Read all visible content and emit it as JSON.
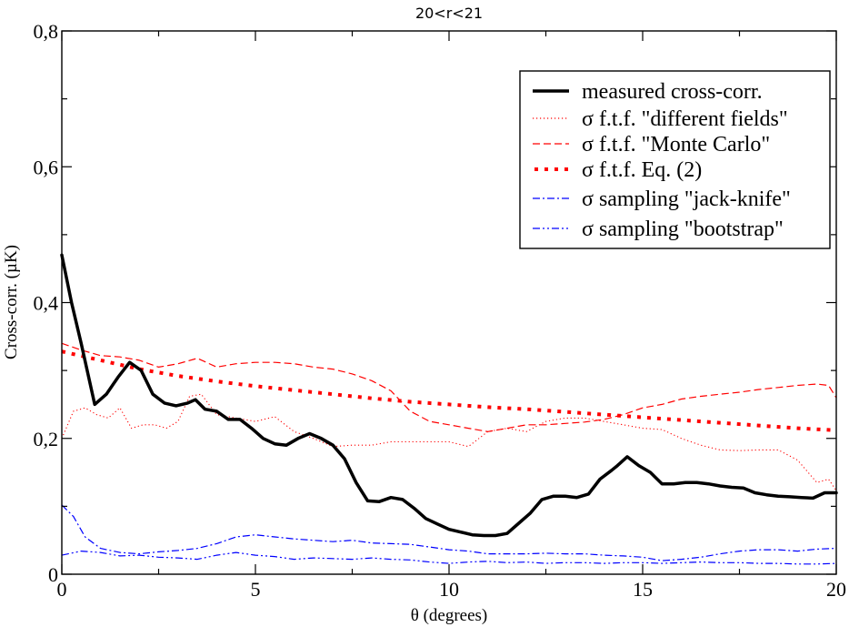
{
  "chart_data": {
    "type": "line",
    "title": "20<r<21",
    "xlabel": "θ (degrees)",
    "ylabel": "Cross-corr. (µK)",
    "xlim": [
      0,
      20
    ],
    "ylim": [
      0,
      0.8
    ],
    "xticks": [
      0,
      5,
      10,
      15,
      20
    ],
    "xtick_labels": [
      "0",
      "5",
      "10",
      "15",
      "20"
    ],
    "yticks": [
      0,
      0.2,
      0.4,
      0.6,
      0.8
    ],
    "ytick_labels": [
      "0",
      "0,2",
      "0,4",
      "0,6",
      "0,8"
    ],
    "grid": false,
    "legend_position": "top-right",
    "series": [
      {
        "name": "measured cross-corr.",
        "color": "#000000",
        "style": "solid-thick",
        "x": [
          0,
          0.25,
          0.5,
          0.85,
          1.15,
          1.45,
          1.75,
          2.05,
          2.35,
          2.65,
          2.95,
          3.25,
          3.45,
          3.7,
          4.0,
          4.3,
          4.6,
          4.9,
          5.2,
          5.5,
          5.8,
          6.1,
          6.4,
          6.7,
          7.0,
          7.3,
          7.6,
          7.9,
          8.2,
          8.5,
          8.8,
          9.1,
          9.4,
          9.7,
          10.0,
          10.3,
          10.6,
          10.9,
          11.2,
          11.5,
          11.8,
          12.1,
          12.4,
          12.7,
          13.0,
          13.3,
          13.6,
          13.9,
          14.2,
          14.35,
          14.6,
          14.9,
          15.2,
          15.5,
          15.8,
          16.1,
          16.4,
          16.7,
          17.0,
          17.3,
          17.6,
          17.9,
          18.2,
          18.5,
          18.8,
          19.1,
          19.4,
          19.7,
          20.0
        ],
        "values": [
          0.47,
          0.4,
          0.34,
          0.25,
          0.265,
          0.29,
          0.312,
          0.3,
          0.265,
          0.252,
          0.248,
          0.252,
          0.257,
          0.243,
          0.24,
          0.228,
          0.228,
          0.215,
          0.2,
          0.192,
          0.19,
          0.2,
          0.207,
          0.2,
          0.19,
          0.17,
          0.135,
          0.108,
          0.107,
          0.113,
          0.11,
          0.097,
          0.082,
          0.074,
          0.066,
          0.062,
          0.058,
          0.057,
          0.057,
          0.06,
          0.075,
          0.09,
          0.11,
          0.115,
          0.115,
          0.113,
          0.118,
          0.14,
          0.153,
          0.16,
          0.173,
          0.16,
          0.15,
          0.133,
          0.133,
          0.135,
          0.135,
          0.133,
          0.13,
          0.128,
          0.127,
          0.12,
          0.117,
          0.115,
          0.114,
          0.113,
          0.112,
          0.12,
          0.12
        ]
      },
      {
        "name": "σ f.t.f. \"different fields\"",
        "color": "#ff0000",
        "style": "dotted",
        "x": [
          0,
          0.3,
          0.6,
          0.9,
          1.2,
          1.5,
          1.8,
          2.1,
          2.4,
          2.7,
          3.0,
          3.3,
          3.6,
          4.0,
          4.5,
          5.0,
          5.5,
          6.0,
          6.5,
          7.0,
          7.5,
          8.0,
          8.5,
          9.0,
          9.5,
          10.0,
          10.5,
          11.0,
          11.5,
          12.0,
          12.5,
          13.0,
          13.5,
          14.0,
          14.5,
          15.0,
          15.5,
          16.0,
          16.5,
          17.0,
          17.5,
          18.0,
          18.5,
          19.0,
          19.5,
          19.8,
          20.0
        ],
        "values": [
          0.2,
          0.24,
          0.245,
          0.235,
          0.23,
          0.245,
          0.215,
          0.22,
          0.22,
          0.215,
          0.225,
          0.262,
          0.265,
          0.235,
          0.23,
          0.225,
          0.232,
          0.21,
          0.2,
          0.188,
          0.19,
          0.19,
          0.195,
          0.195,
          0.195,
          0.195,
          0.188,
          0.21,
          0.215,
          0.21,
          0.225,
          0.23,
          0.23,
          0.225,
          0.22,
          0.215,
          0.213,
          0.2,
          0.19,
          0.183,
          0.182,
          0.183,
          0.183,
          0.168,
          0.135,
          0.14,
          0.123
        ]
      },
      {
        "name": "σ f.t.f. \"Monte Carlo\"",
        "color": "#ff0000",
        "style": "dashed",
        "x": [
          0,
          0.5,
          1.0,
          1.5,
          2.0,
          2.5,
          3.0,
          3.5,
          4.0,
          4.5,
          5.0,
          5.5,
          6.0,
          6.5,
          7.0,
          7.5,
          8.0,
          8.5,
          9.0,
          9.5,
          10.0,
          10.5,
          11.0,
          11.5,
          12.0,
          12.5,
          13.0,
          13.5,
          14.0,
          14.5,
          15.0,
          15.5,
          16.0,
          16.5,
          17.0,
          17.5,
          18.0,
          18.5,
          19.0,
          19.5,
          19.8,
          20.0
        ],
        "values": [
          0.34,
          0.33,
          0.322,
          0.32,
          0.315,
          0.305,
          0.31,
          0.318,
          0.305,
          0.31,
          0.312,
          0.312,
          0.31,
          0.305,
          0.302,
          0.295,
          0.285,
          0.27,
          0.24,
          0.225,
          0.22,
          0.215,
          0.21,
          0.215,
          0.22,
          0.22,
          0.222,
          0.224,
          0.228,
          0.235,
          0.245,
          0.25,
          0.258,
          0.262,
          0.265,
          0.268,
          0.272,
          0.275,
          0.278,
          0.28,
          0.278,
          0.26
        ]
      },
      {
        "name": "σ f.t.f. Eq. (2)",
        "color": "#ff0000",
        "style": "square-dots",
        "x": [
          0,
          1,
          2,
          3,
          4,
          5,
          6,
          7,
          8,
          9,
          10,
          11,
          12,
          13,
          14,
          15,
          16,
          17,
          18,
          19,
          20
        ],
        "values": [
          0.328,
          0.315,
          0.302,
          0.292,
          0.284,
          0.277,
          0.271,
          0.265,
          0.259,
          0.254,
          0.25,
          0.246,
          0.243,
          0.239,
          0.235,
          0.231,
          0.227,
          0.223,
          0.219,
          0.215,
          0.212
        ]
      },
      {
        "name": "σ sampling \"jack-knife\"",
        "color": "#0000ff",
        "style": "dash-dot",
        "x": [
          0,
          0.3,
          0.6,
          1.0,
          1.5,
          2.0,
          2.5,
          3.0,
          3.5,
          4.0,
          4.5,
          5.0,
          5.5,
          6.0,
          6.5,
          7.0,
          7.5,
          8.0,
          8.5,
          9.0,
          9.5,
          10.0,
          10.5,
          11.0,
          11.5,
          12.0,
          12.5,
          13.0,
          13.5,
          14.0,
          14.5,
          15.0,
          15.5,
          16.0,
          16.5,
          17.0,
          17.5,
          18.0,
          18.5,
          19.0,
          19.5,
          20.0
        ],
        "values": [
          0.102,
          0.085,
          0.055,
          0.038,
          0.032,
          0.03,
          0.033,
          0.035,
          0.038,
          0.045,
          0.055,
          0.058,
          0.055,
          0.052,
          0.05,
          0.048,
          0.05,
          0.046,
          0.045,
          0.044,
          0.04,
          0.036,
          0.034,
          0.03,
          0.03,
          0.03,
          0.031,
          0.03,
          0.03,
          0.028,
          0.027,
          0.025,
          0.02,
          0.022,
          0.025,
          0.03,
          0.034,
          0.036,
          0.036,
          0.034,
          0.037,
          0.038
        ]
      },
      {
        "name": "σ sampling \"bootstrap\"",
        "color": "#0000ff",
        "style": "dash-dot-dot",
        "x": [
          0,
          0.5,
          1.0,
          1.5,
          2.0,
          2.5,
          3.0,
          3.5,
          4.0,
          4.5,
          5.0,
          5.5,
          6.0,
          6.5,
          7.0,
          7.5,
          8.0,
          8.5,
          9.0,
          9.5,
          10.0,
          10.5,
          11.0,
          11.5,
          12.0,
          12.5,
          13.0,
          13.5,
          14.0,
          14.5,
          15.0,
          15.5,
          16.0,
          16.5,
          17.0,
          17.5,
          18.0,
          18.5,
          19.0,
          19.5,
          20.0
        ],
        "values": [
          0.028,
          0.034,
          0.032,
          0.027,
          0.028,
          0.025,
          0.024,
          0.022,
          0.028,
          0.032,
          0.028,
          0.026,
          0.022,
          0.024,
          0.023,
          0.022,
          0.024,
          0.022,
          0.021,
          0.018,
          0.016,
          0.018,
          0.019,
          0.017,
          0.018,
          0.016,
          0.017,
          0.017,
          0.016,
          0.017,
          0.017,
          0.016,
          0.017,
          0.018,
          0.017,
          0.017,
          0.016,
          0.016,
          0.015,
          0.015,
          0.016
        ]
      }
    ]
  }
}
